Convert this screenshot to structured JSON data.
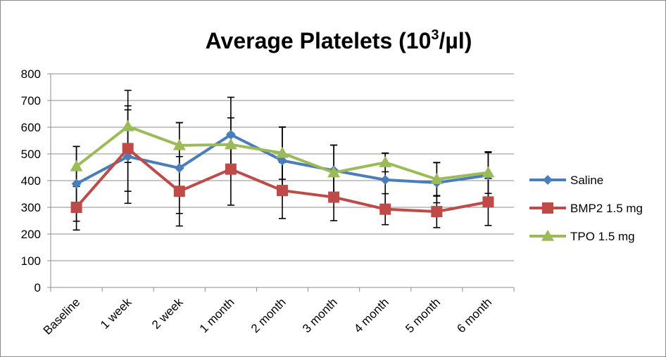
{
  "chart_data": {
    "type": "line",
    "title": "Average Platelets (10",
    "title_sup": "3",
    "title_end": "/µl)",
    "xlabel": "",
    "ylabel": "",
    "categories": [
      "Baseline",
      "1 week",
      "2 week",
      "1 month",
      "2 month",
      "3 month",
      "4 month",
      "5 month",
      "6 month"
    ],
    "ylim": [
      0,
      800
    ],
    "yticks": [
      0,
      100,
      200,
      300,
      400,
      500,
      600,
      700,
      800
    ],
    "grid": "horizontal",
    "legend_position": "right",
    "series": [
      {
        "name": "Saline",
        "color": "#4a7ebb",
        "marker": "diamond",
        "values": [
          388,
          490,
          447,
          572,
          475,
          438,
          403,
          392,
          420
        ],
        "error": [
          140,
          175,
          170,
          140,
          125,
          95,
          100,
          75,
          85
        ]
      },
      {
        "name": "BMP2 1.5 mg",
        "color": "#be4b48",
        "marker": "square",
        "values": [
          300,
          520,
          360,
          443,
          363,
          338,
          293,
          284,
          320
        ],
        "error": [
          85,
          160,
          130,
          135,
          105,
          88,
          58,
          60,
          88
        ]
      },
      {
        "name": "TPO 1.5 mg",
        "color": "#9bbb59",
        "marker": "triangle",
        "values": [
          453,
          603,
          532,
          535,
          503,
          430,
          468,
          405,
          430
        ],
        "error": [
          75,
          135,
          85,
          100,
          98,
          103,
          35,
          63,
          78
        ]
      }
    ]
  }
}
